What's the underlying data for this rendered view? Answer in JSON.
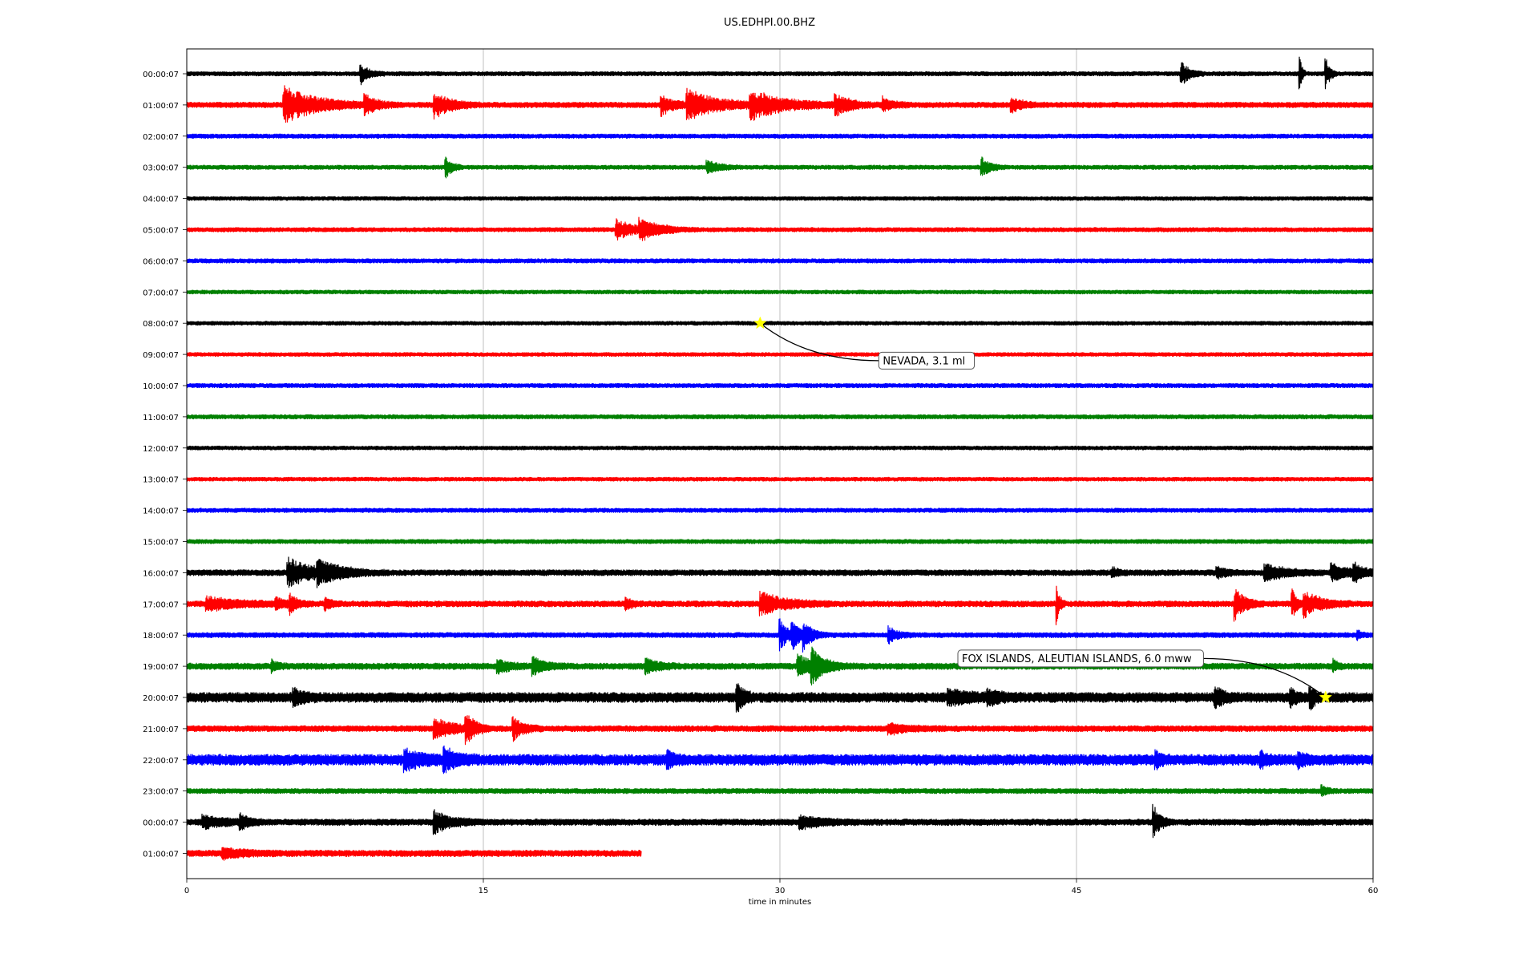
{
  "title": "US.EDHPI.00.BHZ",
  "chart_data": {
    "type": "line",
    "title": "US.EDHPI.00.BHZ",
    "xlabel": "time in minutes",
    "ylabel": "",
    "xlim": [
      0,
      60
    ],
    "xticks": [
      "0",
      "15",
      "30",
      "45",
      "60"
    ],
    "grid": "vertical lines at x ticks",
    "row_colors": [
      "#000000",
      "#ff0000",
      "#0000ff",
      "#008000"
    ],
    "rows": [
      {
        "label": "00:00:07",
        "end": 60,
        "noise": 1.0,
        "events": [
          {
            "t": 8.8,
            "a": 12,
            "d": 0.4
          },
          {
            "t": 50.3,
            "a": 14,
            "d": 0.4
          },
          {
            "t": 56.3,
            "a": 28,
            "d": 0.1
          },
          {
            "t": 57.6,
            "a": 20,
            "d": 0.2
          }
        ]
      },
      {
        "label": "01:00:07",
        "end": 60,
        "noise": 1.3,
        "events": [
          {
            "t": 4.9,
            "a": 22,
            "d": 1.6
          },
          {
            "t": 9.0,
            "a": 12,
            "d": 0.6
          },
          {
            "t": 12.5,
            "a": 16,
            "d": 0.8
          },
          {
            "t": 24.0,
            "a": 12,
            "d": 0.6
          },
          {
            "t": 25.3,
            "a": 18,
            "d": 1.5
          },
          {
            "t": 28.5,
            "a": 16,
            "d": 1.8
          },
          {
            "t": 32.8,
            "a": 11,
            "d": 0.8
          },
          {
            "t": 35.2,
            "a": 8,
            "d": 0.5
          },
          {
            "t": 41.7,
            "a": 8,
            "d": 0.6
          }
        ]
      },
      {
        "label": "02:00:07",
        "end": 60,
        "noise": 1.0,
        "events": []
      },
      {
        "label": "03:00:07",
        "end": 60,
        "noise": 1.0,
        "events": [
          {
            "t": 13.1,
            "a": 14,
            "d": 0.3
          },
          {
            "t": 26.3,
            "a": 8,
            "d": 0.6
          },
          {
            "t": 40.2,
            "a": 12,
            "d": 0.4
          }
        ]
      },
      {
        "label": "04:00:07",
        "end": 60,
        "noise": 0.9,
        "events": []
      },
      {
        "label": "05:00:07",
        "end": 60,
        "noise": 1.0,
        "events": [
          {
            "t": 21.7,
            "a": 12,
            "d": 1.0
          },
          {
            "t": 22.9,
            "a": 11,
            "d": 1.0
          }
        ]
      },
      {
        "label": "06:00:07",
        "end": 60,
        "noise": 1.0,
        "events": []
      },
      {
        "label": "07:00:07",
        "end": 60,
        "noise": 0.9,
        "events": []
      },
      {
        "label": "08:00:07",
        "end": 60,
        "noise": 0.9,
        "events": []
      },
      {
        "label": "09:00:07",
        "end": 60,
        "noise": 0.9,
        "events": []
      },
      {
        "label": "10:00:07",
        "end": 60,
        "noise": 1.0,
        "events": []
      },
      {
        "label": "11:00:07",
        "end": 60,
        "noise": 1.0,
        "events": []
      },
      {
        "label": "12:00:07",
        "end": 60,
        "noise": 0.9,
        "events": []
      },
      {
        "label": "13:00:07",
        "end": 60,
        "noise": 0.9,
        "events": []
      },
      {
        "label": "14:00:07",
        "end": 60,
        "noise": 1.0,
        "events": []
      },
      {
        "label": "15:00:07",
        "end": 60,
        "noise": 1.0,
        "events": []
      },
      {
        "label": "16:00:07",
        "end": 60,
        "noise": 1.4,
        "events": [
          {
            "t": 5.1,
            "a": 18,
            "d": 1.2
          },
          {
            "t": 6.6,
            "a": 12,
            "d": 1.2
          },
          {
            "t": 46.8,
            "a": 6,
            "d": 0.3
          },
          {
            "t": 52.1,
            "a": 6,
            "d": 0.5
          },
          {
            "t": 54.5,
            "a": 10,
            "d": 1.0
          },
          {
            "t": 57.9,
            "a": 10,
            "d": 0.8
          },
          {
            "t": 59.0,
            "a": 12,
            "d": 0.4
          }
        ]
      },
      {
        "label": "17:00:07",
        "end": 60,
        "noise": 1.4,
        "events": [
          {
            "t": 1.0,
            "a": 8,
            "d": 1.6
          },
          {
            "t": 4.5,
            "a": 7,
            "d": 0.4
          },
          {
            "t": 5.2,
            "a": 10,
            "d": 0.4
          },
          {
            "t": 7.0,
            "a": 7,
            "d": 0.3
          },
          {
            "t": 22.2,
            "a": 7,
            "d": 0.3
          },
          {
            "t": 29.0,
            "a": 14,
            "d": 1.2
          },
          {
            "t": 44.0,
            "a": 24,
            "d": 0.15
          },
          {
            "t": 53.0,
            "a": 20,
            "d": 0.5
          },
          {
            "t": 55.9,
            "a": 20,
            "d": 0.2
          },
          {
            "t": 56.5,
            "a": 16,
            "d": 0.8
          }
        ]
      },
      {
        "label": "18:00:07",
        "end": 60,
        "noise": 1.2,
        "events": [
          {
            "t": 30.0,
            "a": 18,
            "d": 0.4
          },
          {
            "t": 30.6,
            "a": 18,
            "d": 0.4
          },
          {
            "t": 31.2,
            "a": 16,
            "d": 0.4
          },
          {
            "t": 35.5,
            "a": 10,
            "d": 0.4
          },
          {
            "t": 59.2,
            "a": 6,
            "d": 0.2
          }
        ]
      },
      {
        "label": "19:00:07",
        "end": 60,
        "noise": 1.5,
        "events": [
          {
            "t": 4.3,
            "a": 6,
            "d": 0.3
          },
          {
            "t": 15.7,
            "a": 8,
            "d": 0.6
          },
          {
            "t": 17.5,
            "a": 10,
            "d": 0.6
          },
          {
            "t": 23.2,
            "a": 9,
            "d": 0.6
          },
          {
            "t": 30.9,
            "a": 12,
            "d": 1.0
          },
          {
            "t": 31.6,
            "a": 20,
            "d": 0.5
          },
          {
            "t": 58.0,
            "a": 7,
            "d": 0.2
          }
        ]
      },
      {
        "label": "20:00:07",
        "end": 60,
        "noise": 2.4,
        "events": [
          {
            "t": 5.4,
            "a": 10,
            "d": 0.4
          },
          {
            "t": 27.8,
            "a": 20,
            "d": 0.3
          },
          {
            "t": 38.5,
            "a": 8,
            "d": 1.0
          },
          {
            "t": 40.5,
            "a": 8,
            "d": 0.6
          },
          {
            "t": 52.0,
            "a": 12,
            "d": 0.4
          },
          {
            "t": 55.8,
            "a": 10,
            "d": 0.3
          },
          {
            "t": 56.8,
            "a": 18,
            "d": 0.2
          }
        ]
      },
      {
        "label": "21:00:07",
        "end": 60,
        "noise": 1.4,
        "events": [
          {
            "t": 12.5,
            "a": 12,
            "d": 1.0
          },
          {
            "t": 14.1,
            "a": 20,
            "d": 0.4
          },
          {
            "t": 16.5,
            "a": 14,
            "d": 0.5
          },
          {
            "t": 35.5,
            "a": 6,
            "d": 1.0
          }
        ]
      },
      {
        "label": "22:00:07",
        "end": 60,
        "noise": 2.6,
        "events": [
          {
            "t": 11.0,
            "a": 10,
            "d": 1.0
          },
          {
            "t": 13.0,
            "a": 12,
            "d": 0.6
          },
          {
            "t": 24.3,
            "a": 10,
            "d": 0.3
          },
          {
            "t": 49.0,
            "a": 8,
            "d": 0.3
          },
          {
            "t": 54.3,
            "a": 8,
            "d": 0.3
          },
          {
            "t": 56.2,
            "a": 8,
            "d": 0.3
          }
        ]
      },
      {
        "label": "23:00:07",
        "end": 60,
        "noise": 1.2,
        "events": [
          {
            "t": 57.4,
            "a": 6,
            "d": 0.3
          }
        ]
      },
      {
        "label": "00:00:07",
        "end": 60,
        "noise": 1.5,
        "events": [
          {
            "t": 0.8,
            "a": 8,
            "d": 1.0
          },
          {
            "t": 2.7,
            "a": 9,
            "d": 0.4
          },
          {
            "t": 12.5,
            "a": 14,
            "d": 0.8
          },
          {
            "t": 31.0,
            "a": 8,
            "d": 1.0
          },
          {
            "t": 48.9,
            "a": 22,
            "d": 0.3
          }
        ]
      },
      {
        "label": "01:00:07",
        "end": 23,
        "noise": 1.5,
        "events": [
          {
            "t": 1.8,
            "a": 6,
            "d": 1.0
          }
        ]
      }
    ],
    "annotations": [
      {
        "text": "NEVADA, 3.1 ml",
        "row": 8,
        "t": 29.0,
        "box_row_offset": 1.2,
        "box_t": 35.0
      },
      {
        "text": "FOX ISLANDS, ALEUTIAN ISLANDS, 6.0 mww",
        "row": 20,
        "t": 57.6,
        "box_row_offset": -1.25,
        "box_t": 39.0
      }
    ],
    "marker_color": "#ffff00"
  }
}
